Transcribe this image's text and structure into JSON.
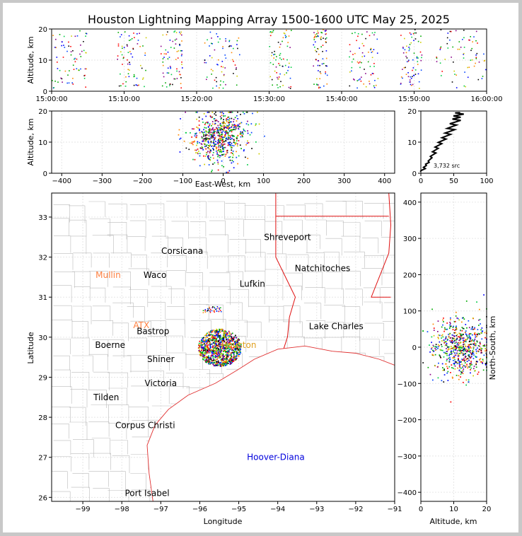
{
  "title": "Houston Lightning Mapping Array 1500-1600 UTC May 25, 2025",
  "colors": {
    "frame_border": "#c8c8c8",
    "background": "#ffffff",
    "state_border": "#e01010",
    "county_border": "#bbbbbb",
    "coast": "#e03030",
    "histogram": "#000000",
    "source_palette": [
      "#0000ff",
      "#0044ff",
      "#00aa00",
      "#00cc44",
      "#cccc00",
      "#ff8800",
      "#ff0000",
      "#000000",
      "#880088"
    ]
  },
  "chart_data": [
    {
      "type": "scatter",
      "name": "altitude-vs-time",
      "xlabel": "",
      "ylabel": "Altitude, km",
      "x_ticks": [
        "15:00:00",
        "15:10:00",
        "15:20:00",
        "15:30:00",
        "15:40:00",
        "15:50:00",
        "16:00:00"
      ],
      "x_range_minutes": [
        0,
        60
      ],
      "ylim": [
        0,
        20
      ],
      "y_ticks": [
        0,
        10,
        20
      ],
      "grid": true,
      "activity_clusters_minutes": [
        [
          0,
          5
        ],
        [
          9,
          13
        ],
        [
          15,
          18
        ],
        [
          21,
          26
        ],
        [
          30,
          33
        ],
        [
          36,
          38
        ],
        [
          41,
          45
        ],
        [
          48,
          51
        ],
        [
          53,
          60
        ]
      ]
    },
    {
      "type": "scatter",
      "name": "altitude-vs-east-west",
      "xlabel": "East-West, km",
      "ylabel": "Altitude, km",
      "xlim": [
        -425,
        425
      ],
      "x_ticks": [
        -400,
        -300,
        -200,
        -100,
        0,
        100,
        200,
        300,
        400
      ],
      "ylim": [
        0,
        20
      ],
      "y_ticks": [
        0,
        10,
        20
      ],
      "cluster_center_km": -10,
      "cluster_spread_km": 40
    },
    {
      "type": "line",
      "name": "altitude-histogram",
      "xlim": [
        0,
        100
      ],
      "x_ticks": [
        0,
        50,
        100
      ],
      "ylim": [
        0,
        20
      ],
      "y_ticks": [
        0,
        10,
        20
      ],
      "annotation": "3,732 src",
      "profile": [
        [
          1,
          0.5
        ],
        [
          5,
          1.5
        ],
        [
          9,
          2.5
        ],
        [
          14,
          3.5
        ],
        [
          18,
          5
        ],
        [
          22,
          6.5
        ],
        [
          27,
          8
        ],
        [
          33,
          9.5
        ],
        [
          40,
          11
        ],
        [
          46,
          12.5
        ],
        [
          50,
          14
        ],
        [
          55,
          15.5
        ],
        [
          60,
          17
        ],
        [
          62,
          18
        ],
        [
          65,
          19
        ],
        [
          58,
          19.5
        ]
      ]
    },
    {
      "type": "scatter",
      "name": "plan-view-map",
      "xlabel": "Longitude",
      "ylabel": "Latitude",
      "xlim": [
        -99.8,
        -91
      ],
      "x_ticks": [
        -99,
        -98,
        -97,
        -96,
        -95,
        -94,
        -93,
        -92,
        -91
      ],
      "ylim": [
        25.9,
        33.6
      ],
      "y_ticks": [
        26,
        27,
        28,
        29,
        30,
        31,
        32,
        33
      ],
      "storm_center": {
        "lon": -95.5,
        "lat": 29.75,
        "radius_deg": 0.55
      },
      "secondary_cluster": {
        "lon": -95.7,
        "lat": 30.7,
        "radius_deg": 0.25
      },
      "cities": [
        {
          "name": "Shreveport",
          "lon": -93.75,
          "lat": 32.5,
          "color": "#000000"
        },
        {
          "name": "Corsicana",
          "lon": -96.45,
          "lat": 32.15,
          "color": "#000000"
        },
        {
          "name": "Mullin",
          "lon": -98.35,
          "lat": 31.55,
          "color": "#ff8040"
        },
        {
          "name": "Waco",
          "lon": -97.15,
          "lat": 31.55,
          "color": "#000000"
        },
        {
          "name": "Natchitoches",
          "lon": -92.85,
          "lat": 31.72,
          "color": "#000000"
        },
        {
          "name": "Lufkin",
          "lon": -94.65,
          "lat": 31.33,
          "color": "#000000"
        },
        {
          "name": "ATX",
          "lon": -97.5,
          "lat": 30.3,
          "color": "#ff8040"
        },
        {
          "name": "Bastrop",
          "lon": -97.2,
          "lat": 30.15,
          "color": "#000000"
        },
        {
          "name": "Boerne",
          "lon": -98.3,
          "lat": 29.8,
          "color": "#000000"
        },
        {
          "name": "Lake Charles",
          "lon": -92.5,
          "lat": 30.27,
          "color": "#000000"
        },
        {
          "name": "Houston",
          "lon": -95.0,
          "lat": 29.8,
          "color": "#e0a020"
        },
        {
          "name": "Shiner",
          "lon": -97.0,
          "lat": 29.45,
          "color": "#000000"
        },
        {
          "name": "Victoria",
          "lon": -97.0,
          "lat": 28.85,
          "color": "#000000"
        },
        {
          "name": "Tilden",
          "lon": -98.4,
          "lat": 28.5,
          "color": "#000000"
        },
        {
          "name": "Corpus Christi",
          "lon": -97.4,
          "lat": 27.8,
          "color": "#000000"
        },
        {
          "name": "Hoover-Diana",
          "lon": -94.05,
          "lat": 27.0,
          "color": "#0000dd"
        },
        {
          "name": "Port Isabel",
          "lon": -97.35,
          "lat": 26.1,
          "color": "#000000"
        }
      ]
    },
    {
      "type": "scatter",
      "name": "north-south-vs-altitude",
      "xlabel": "Altitude, km",
      "ylabel": "North-South, km",
      "xlim": [
        0,
        20
      ],
      "x_ticks": [
        0,
        10,
        20
      ],
      "ylim": [
        -425,
        425
      ],
      "y_ticks": [
        -400,
        -300,
        -200,
        -100,
        0,
        100,
        200,
        300,
        400
      ],
      "cluster_center_km": 0,
      "cluster_spread_km": 40
    }
  ]
}
